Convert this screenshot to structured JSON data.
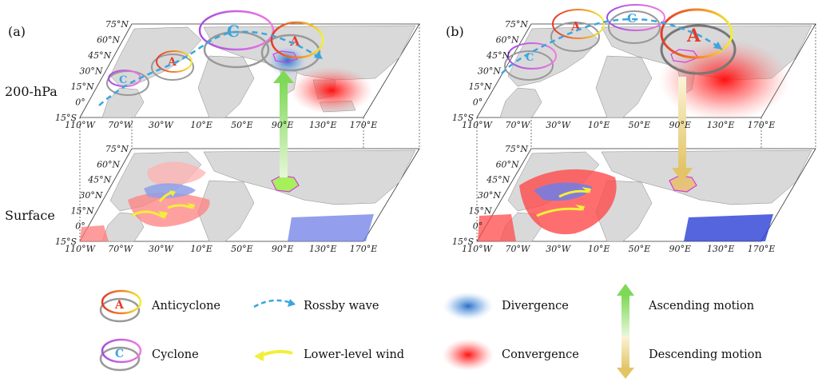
{
  "panels": [
    {
      "id": "a",
      "letter": "(a)"
    },
    {
      "id": "b",
      "letter": "(b)"
    }
  ],
  "levels": {
    "upper": "200-hPa",
    "lower": "Surface"
  },
  "axes": {
    "lat_ticks": [
      "75°N",
      "60°N",
      "45°N",
      "30°N",
      "15°N",
      "0°",
      "15°S"
    ],
    "lon_ticks": [
      "110°W",
      "70°W",
      "30°W",
      "10°E",
      "50°E",
      "90°E",
      "130°E",
      "170°E"
    ]
  },
  "circulation": {
    "anticyclone_mark": "A",
    "cyclone_mark": "C"
  },
  "legend": {
    "anticyclone": "Anticyclone",
    "cyclone": "Cyclone",
    "rossby": "Rossby wave",
    "lowwind": "Lower-level wind",
    "divergence": "Divergence",
    "convergence": "Convergence",
    "ascending": "Ascending motion",
    "descending": "Descending motion"
  },
  "colors": {
    "rossby": "#3aa6e0",
    "lowwind": "#f2ef3a",
    "divergence": "#2f7fd1",
    "convergence": "#ff1a1a",
    "ascending": "#7ed957",
    "descending": "#e8cc6a",
    "land": "#d9d9d9",
    "plateau_a": "#a6f05a",
    "plateau_b": "#e6c27a"
  }
}
